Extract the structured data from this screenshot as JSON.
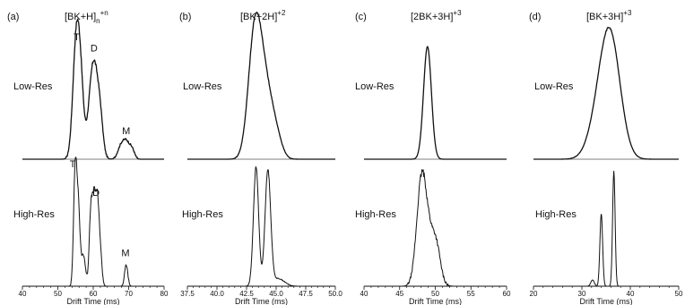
{
  "panels": [
    {
      "label": "(a)",
      "title": "[BK+H]",
      "title_sub": "n",
      "title_sup": "+n",
      "xlim": [
        40,
        80
      ],
      "xticks": [
        "40",
        "50",
        "60",
        "70",
        "80"
      ],
      "xlabel": "Drift Time (ms)",
      "low_label": "Low-Res",
      "high_label": "High-Res",
      "low_annotations": [
        {
          "text": "T",
          "x": 55.3,
          "y": 0.95
        },
        {
          "text": "D",
          "x": 60.2,
          "y": 0.86
        },
        {
          "text": "M",
          "x": 69.3,
          "y": 0.2
        }
      ],
      "high_annotations": [
        {
          "text": "T",
          "x": 54.2,
          "y": 0.95
        },
        {
          "text": "D",
          "x": 60.8,
          "y": 0.72
        },
        {
          "text": "M",
          "x": 69.1,
          "y": 0.24
        }
      ]
    },
    {
      "label": "(b)",
      "title": "[BK+2H]",
      "title_sub": "",
      "title_sup": "+2",
      "xlim": [
        37.5,
        50.0
      ],
      "xticks": [
        "37.5",
        "40.0",
        "42.5",
        "45.0",
        "47.5",
        "50.0"
      ],
      "xlabel": "Drift Time (ms)",
      "low_label": "Low-Res",
      "high_label": "High-Res",
      "low_annotations": [],
      "high_annotations": []
    },
    {
      "label": "(c)",
      "title": "[2BK+3H]",
      "title_sub": "",
      "title_sup": "+3",
      "xlim": [
        40,
        60
      ],
      "xticks": [
        "40",
        "45",
        "50",
        "55",
        "60"
      ],
      "xlabel": "Drift Time (ms)",
      "low_label": "Low-Res",
      "high_label": "High-Res",
      "low_annotations": [],
      "high_annotations": []
    },
    {
      "label": "(d)",
      "title": "[BK+3H]",
      "title_sub": "",
      "title_sup": "+3",
      "xlim": [
        20,
        50
      ],
      "xticks": [
        "20",
        "30",
        "40",
        "50"
      ],
      "xlabel": "Drift Time (ms)",
      "low_label": "Low-Res",
      "high_label": "High-Res",
      "low_annotations": [],
      "high_annotations": []
    }
  ],
  "chart_data": [
    {
      "type": "line",
      "panel": "(a)",
      "title": "[BK+H]n+n",
      "xlabel": "Drift Time (ms)",
      "ylabel": "",
      "xlim": [
        40,
        80
      ],
      "grid": false,
      "series": [
        {
          "name": "Low-Res",
          "peaks": [
            [
              55.3,
              1.0,
              1.0
            ],
            [
              56.6,
              0.35,
              0.8
            ],
            [
              60.1,
              0.78,
              1.3
            ],
            [
              62.0,
              0.2,
              0.8
            ],
            [
              67.8,
              0.1,
              0.9
            ],
            [
              69.4,
              0.13,
              0.9
            ],
            [
              71.0,
              0.07,
              0.7
            ]
          ],
          "noise": 0.012
        },
        {
          "name": "High-Res",
          "peaks": [
            [
              54.9,
              0.95,
              0.45
            ],
            [
              55.8,
              0.6,
              0.45
            ],
            [
              57.2,
              0.25,
              0.6
            ],
            [
              59.3,
              0.58,
              0.45
            ],
            [
              60.2,
              0.62,
              0.45
            ],
            [
              61.1,
              0.6,
              0.45
            ],
            [
              61.9,
              0.3,
              0.5
            ],
            [
              69.3,
              0.17,
              0.45
            ]
          ],
          "noise": 0.015
        }
      ]
    },
    {
      "type": "line",
      "panel": "(b)",
      "title": "[BK+2H]+2",
      "xlabel": "Drift Time (ms)",
      "ylabel": "",
      "xlim": [
        37.5,
        50.0
      ],
      "grid": false,
      "series": [
        {
          "name": "Low-Res",
          "peaks": [
            [
              43.2,
              0.98,
              0.55
            ],
            [
              44.1,
              0.5,
              0.6
            ],
            [
              45.0,
              0.15,
              0.5
            ]
          ],
          "noise": 0.006
        },
        {
          "name": "High-Res",
          "peaks": [
            [
              43.3,
              0.95,
              0.22
            ],
            [
              44.3,
              0.92,
              0.24
            ],
            [
              45.2,
              0.06,
              0.5
            ]
          ],
          "noise": 0.006
        }
      ]
    },
    {
      "type": "line",
      "panel": "(c)",
      "title": "[2BK+3H]+3",
      "xlabel": "Drift Time (ms)",
      "ylabel": "",
      "xlim": [
        40,
        60
      ],
      "grid": false,
      "series": [
        {
          "name": "Low-Res",
          "peaks": [
            [
              48.9,
              0.9,
              0.55
            ]
          ],
          "noise": 0.0
        },
        {
          "name": "High-Res",
          "peaks": [
            [
              48.1,
              0.85,
              0.7
            ],
            [
              49.6,
              0.35,
              0.8
            ],
            [
              50.3,
              0.1,
              0.5
            ]
          ],
          "noise": 0.02
        }
      ]
    },
    {
      "type": "line",
      "panel": "(d)",
      "title": "[BK+3H]+3",
      "xlabel": "Drift Time (ms)",
      "ylabel": "",
      "xlim": [
        20,
        50
      ],
      "grid": false,
      "series": [
        {
          "name": "Low-Res",
          "peaks": [
            [
              35.8,
              0.98,
              2.1
            ],
            [
              33.0,
              0.18,
              2.0
            ]
          ],
          "noise": 0.003
        },
        {
          "name": "High-Res",
          "peaks": [
            [
              32.2,
              0.05,
              0.35
            ],
            [
              34.0,
              0.58,
              0.28
            ],
            [
              36.6,
              0.92,
              0.26
            ]
          ],
          "noise": 0.003
        }
      ]
    }
  ]
}
